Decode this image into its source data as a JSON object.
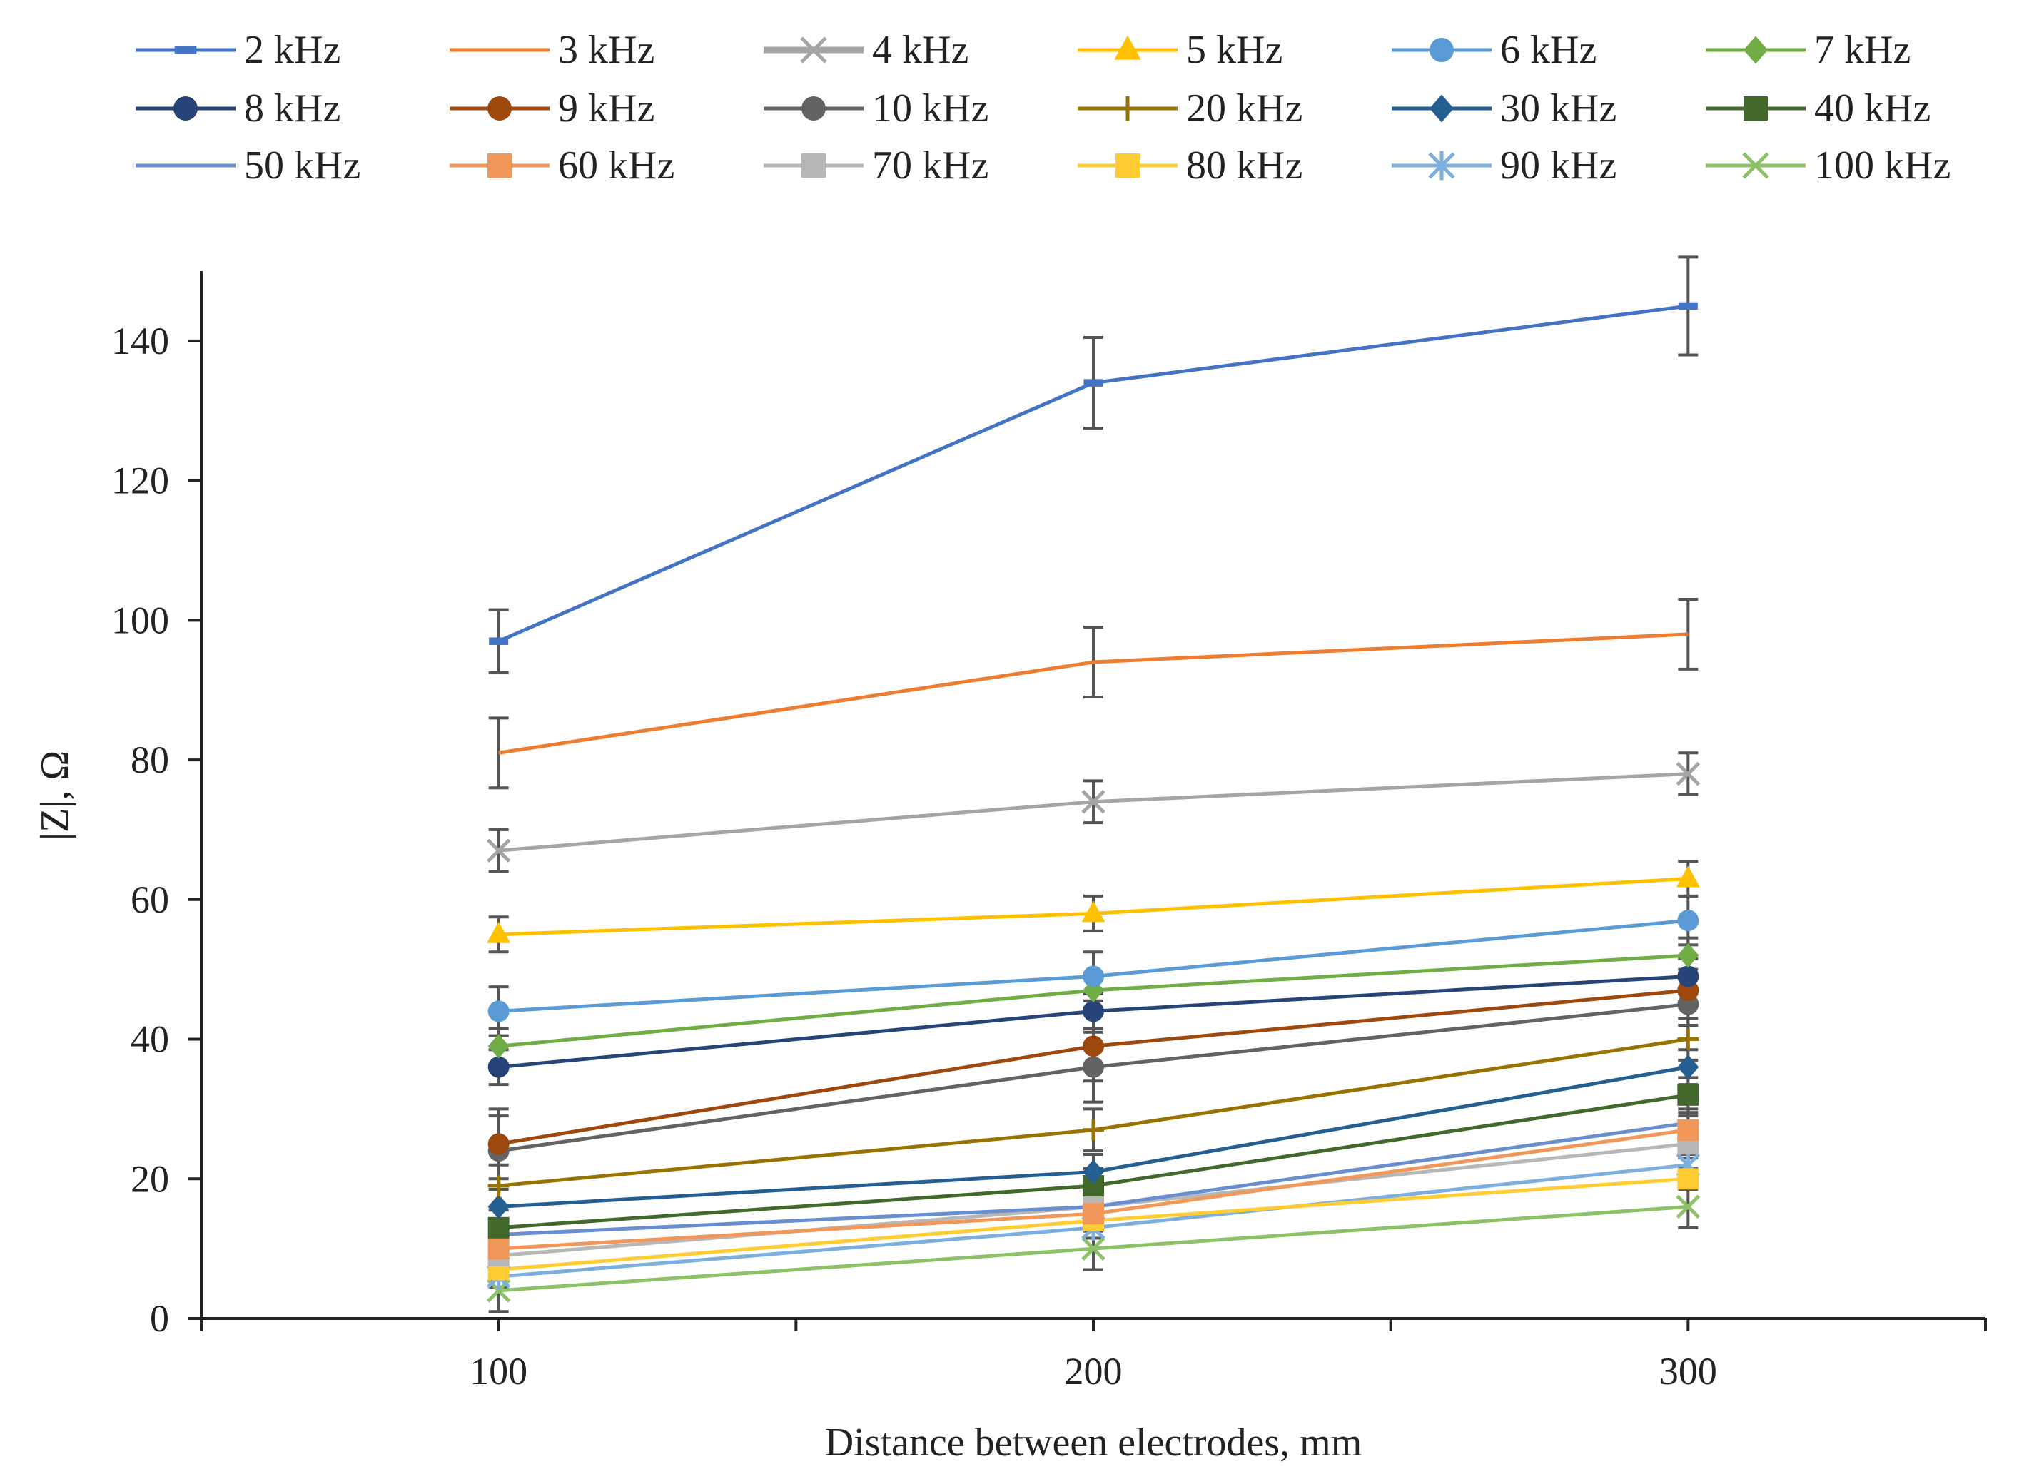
{
  "chart_data": {
    "type": "line",
    "title": "",
    "xlabel": "Distance between electrodes, mm",
    "ylabel": "|Z|, Ω",
    "x": [
      100,
      200,
      300
    ],
    "xlim": [
      50,
      350
    ],
    "ylim": [
      0,
      150
    ],
    "x_ticks": [
      "100",
      "200",
      "300"
    ],
    "y_ticks": [
      "0",
      "20",
      "40",
      "60",
      "80",
      "100",
      "120",
      "140"
    ],
    "grid": false,
    "legend_position": "top",
    "series": [
      {
        "name": "2 kHz",
        "color": "#4472C4",
        "marker": "dash",
        "values": [
          97,
          134,
          145
        ],
        "errors": [
          4.5,
          6.5,
          7
        ]
      },
      {
        "name": "3 kHz",
        "color": "#ED7D31",
        "marker": "none",
        "values": [
          81,
          94,
          98
        ],
        "errors": [
          5,
          5,
          5
        ]
      },
      {
        "name": "4 kHz",
        "color": "#A5A5A5",
        "marker": "x",
        "values": [
          67,
          74,
          78
        ],
        "errors": [
          3,
          3,
          3
        ]
      },
      {
        "name": "5 kHz",
        "color": "#FFC000",
        "marker": "triangle",
        "values": [
          55,
          58,
          63
        ],
        "errors": [
          2.5,
          2.5,
          2.5
        ]
      },
      {
        "name": "6 kHz",
        "color": "#5B9BD5",
        "marker": "circle",
        "values": [
          44,
          49,
          57
        ],
        "errors": [
          3.5,
          3.5,
          3.5
        ]
      },
      {
        "name": "7 kHz",
        "color": "#70AD47",
        "marker": "diamond",
        "values": [
          39,
          47,
          52
        ],
        "errors": [
          2.5,
          2.5,
          2.5
        ]
      },
      {
        "name": "8 kHz",
        "color": "#264478",
        "marker": "circle",
        "values": [
          36,
          44,
          49
        ],
        "errors": [
          2.5,
          2.5,
          2.5
        ]
      },
      {
        "name": "9 kHz",
        "color": "#9E480E",
        "marker": "circle",
        "values": [
          25,
          39,
          47
        ],
        "errors": [
          5,
          5,
          5
        ]
      },
      {
        "name": "10 kHz",
        "color": "#636363",
        "marker": "circle",
        "values": [
          24,
          36,
          45
        ],
        "errors": [
          5,
          5,
          5
        ]
      },
      {
        "name": "20 kHz",
        "color": "#997300",
        "marker": "plus",
        "values": [
          19,
          27,
          40
        ],
        "errors": [
          3,
          3,
          3
        ]
      },
      {
        "name": "30 kHz",
        "color": "#255E91",
        "marker": "diamond",
        "values": [
          16,
          21,
          36
        ],
        "errors": [
          2.5,
          2.5,
          2.5
        ]
      },
      {
        "name": "40 kHz",
        "color": "#43682B",
        "marker": "square",
        "values": [
          13,
          19,
          32
        ],
        "errors": [
          2.5,
          2.5,
          2.5
        ]
      },
      {
        "name": "50 kHz",
        "color": "#698ED0",
        "marker": "none",
        "values": [
          12,
          16,
          28
        ],
        "errors": [
          2,
          2,
          2
        ]
      },
      {
        "name": "60 kHz",
        "color": "#F1975A",
        "marker": "square",
        "values": [
          10,
          15,
          27
        ],
        "errors": [
          2,
          2,
          2
        ]
      },
      {
        "name": "70 kHz",
        "color": "#B7B7B7",
        "marker": "square",
        "values": [
          9,
          16,
          25
        ],
        "errors": [
          2,
          2,
          2
        ]
      },
      {
        "name": "80 kHz",
        "color": "#FFCD33",
        "marker": "square",
        "values": [
          7,
          14,
          20
        ],
        "errors": [
          1.5,
          1.5,
          1.5
        ]
      },
      {
        "name": "90 kHz",
        "color": "#7CAFDD",
        "marker": "asterisk",
        "values": [
          6,
          13,
          22
        ],
        "errors": [
          1.5,
          1.5,
          1.5
        ]
      },
      {
        "name": "100 kHz",
        "color": "#8CC168",
        "marker": "x",
        "values": [
          4,
          10,
          16
        ],
        "errors": [
          3,
          3,
          3
        ]
      }
    ]
  }
}
